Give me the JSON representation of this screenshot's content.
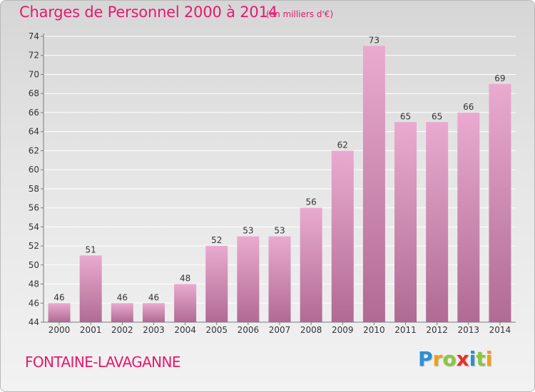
{
  "header": {
    "title": "Charges de Personnel 2000 à 2014",
    "unit": "(en milliers d'€)"
  },
  "footer": {
    "place": "FONTAINE-LAVAGANNE",
    "logo": {
      "letters": [
        "P",
        "r",
        "o",
        "x",
        "i",
        "t",
        "i"
      ],
      "colors": [
        "#2a8fd6",
        "#f0a018",
        "#8cc63f",
        "#e8302a",
        "#2a8fd6",
        "#8cc63f",
        "#f0a018"
      ]
    }
  },
  "chart_data": {
    "type": "bar",
    "title": "Charges de Personnel 2000 à 2014",
    "subtitle": "(en milliers d'€)",
    "categories": [
      "2000",
      "2001",
      "2002",
      "2003",
      "2004",
      "2005",
      "2006",
      "2007",
      "2008",
      "2009",
      "2010",
      "2011",
      "2012",
      "2013",
      "2014"
    ],
    "values": [
      46,
      51,
      46,
      46,
      48,
      52,
      53,
      53,
      56,
      62,
      73,
      65,
      65,
      66,
      69
    ],
    "yticks": [
      "44",
      "46",
      "48",
      "50",
      "52",
      "54",
      "56",
      "58",
      "60",
      "62",
      "64",
      "66",
      "68",
      "70",
      "72",
      "74"
    ],
    "ylim": [
      44,
      74
    ],
    "grid": true,
    "legend": "none",
    "colors": {
      "bar_top": "#eaaad0",
      "bar_bottom": "#b06b94",
      "grid": "#ffffff",
      "axis": "#7a7a7a",
      "text": "#333333"
    }
  }
}
